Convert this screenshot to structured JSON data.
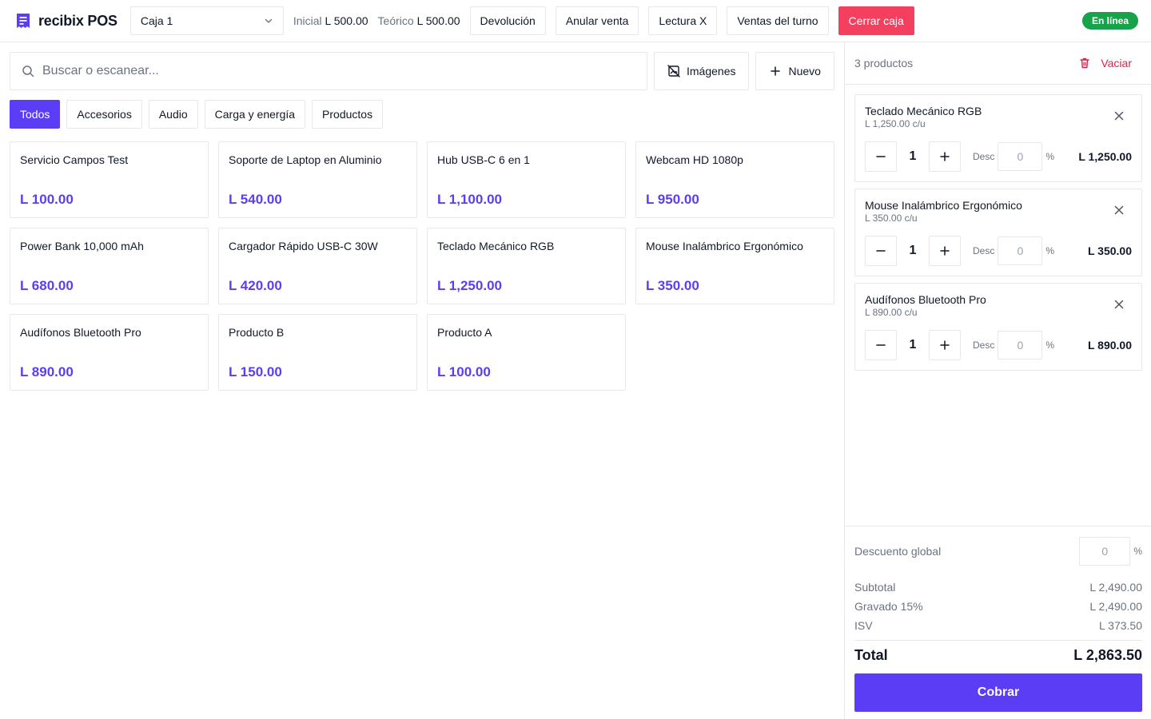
{
  "app": {
    "brand": "recibix POS",
    "register": "Caja 1",
    "stats": {
      "initial_label": "Inicial",
      "initial_value": "L 500.00",
      "theoretical_label": "Teórico",
      "theoretical_value": "L 500.00"
    },
    "actions": {
      "return": "Devolución",
      "void": "Anular venta",
      "x_read": "Lectura X",
      "shift_sales": "Ventas del turno",
      "close_register": "Cerrar caja"
    },
    "status": "En línea"
  },
  "search": {
    "placeholder": "Buscar o escanear...",
    "images_label": "Imágenes",
    "new_label": "Nuevo"
  },
  "categories": [
    "Todos",
    "Accesorios",
    "Audio",
    "Carga y energía",
    "Productos"
  ],
  "active_category": "Todos",
  "products": [
    {
      "name": "Servicio Campos Test",
      "price": "L 100.00"
    },
    {
      "name": "Soporte de Laptop en Aluminio",
      "price": "L 540.00"
    },
    {
      "name": "Hub USB-C 6 en 1",
      "price": "L 1,100.00"
    },
    {
      "name": "Webcam HD 1080p",
      "price": "L 950.00"
    },
    {
      "name": "Power Bank 10,000 mAh",
      "price": "L 680.00"
    },
    {
      "name": "Cargador Rápido USB-C 30W",
      "price": "L 420.00"
    },
    {
      "name": "Teclado Mecánico RGB",
      "price": "L 1,250.00"
    },
    {
      "name": "Mouse Inalámbrico Ergonómico",
      "price": "L 350.00"
    },
    {
      "name": "Audífonos Bluetooth Pro",
      "price": "L 890.00"
    },
    {
      "name": "Producto B",
      "price": "L 150.00"
    },
    {
      "name": "Producto A",
      "price": "L 100.00"
    }
  ],
  "cart": {
    "count_label": "3 productos",
    "empty_label": "Vaciar",
    "items": [
      {
        "name": "Teclado Mecánico RGB",
        "unit": "L 1,250.00 c/u",
        "qty": "1",
        "desc_label": "Desc",
        "desc": "0",
        "pct": "%",
        "total": "L 1,250.00"
      },
      {
        "name": "Mouse Inalámbrico Ergonómico",
        "unit": "L 350.00 c/u",
        "qty": "1",
        "desc_label": "Desc",
        "desc": "0",
        "pct": "%",
        "total": "L 350.00"
      },
      {
        "name": "Audífonos Bluetooth Pro",
        "unit": "L 890.00 c/u",
        "qty": "1",
        "desc_label": "Desc",
        "desc": "0",
        "pct": "%",
        "total": "L 890.00"
      }
    ],
    "global_discount_label": "Descuento global",
    "global_discount": "0",
    "global_pct": "%",
    "summary": [
      {
        "label": "Subtotal",
        "value": "L 2,490.00"
      },
      {
        "label": "Gravado 15%",
        "value": "L 2,490.00"
      },
      {
        "label": "ISV",
        "value": "L 373.50"
      }
    ],
    "total_label": "Total",
    "total_value": "L 2,863.50",
    "pay_label": "Cobrar"
  },
  "colors": {
    "accent": "#5b3df5",
    "danger": "#f43f5e",
    "online": "#16a34a"
  }
}
